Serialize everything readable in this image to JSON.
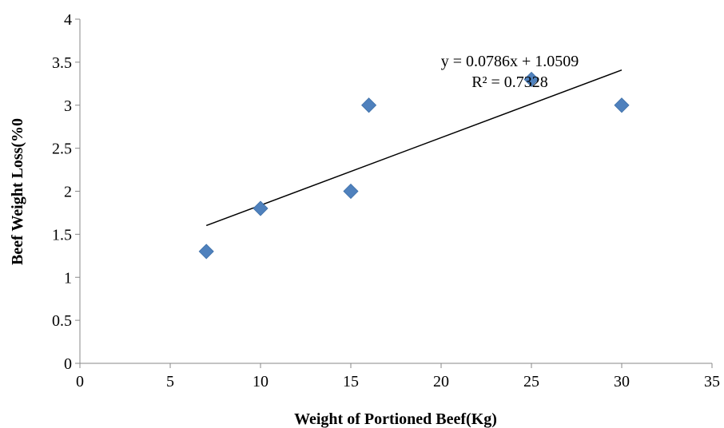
{
  "chart_data": {
    "type": "scatter",
    "title": "",
    "xlabel": "Weight of Portioned Beef(Kg)",
    "ylabel": "Beef  Weight  Loss(%0",
    "xlim": [
      0,
      35
    ],
    "ylim": [
      0,
      4
    ],
    "xticks": [
      0,
      5,
      10,
      15,
      20,
      25,
      30,
      35
    ],
    "yticks": [
      0,
      0.5,
      1,
      1.5,
      2,
      2.5,
      3,
      3.5,
      4
    ],
    "grid": false,
    "legend": "none",
    "marker": "diamond",
    "marker_color": "#4f81bd",
    "series": [
      {
        "x": [
          7,
          10,
          15,
          16,
          25,
          30
        ],
        "y": [
          1.3,
          1.8,
          2.0,
          3.0,
          3.3,
          3.0
        ]
      }
    ],
    "trendline": {
      "type": "linear",
      "slope": 0.0786,
      "intercept": 1.0509,
      "x_range": [
        7,
        30
      ],
      "equation_label": "y = 0.0786x + 1.0509",
      "r2_label": "R² = 0.7328",
      "color": "#000000"
    }
  }
}
